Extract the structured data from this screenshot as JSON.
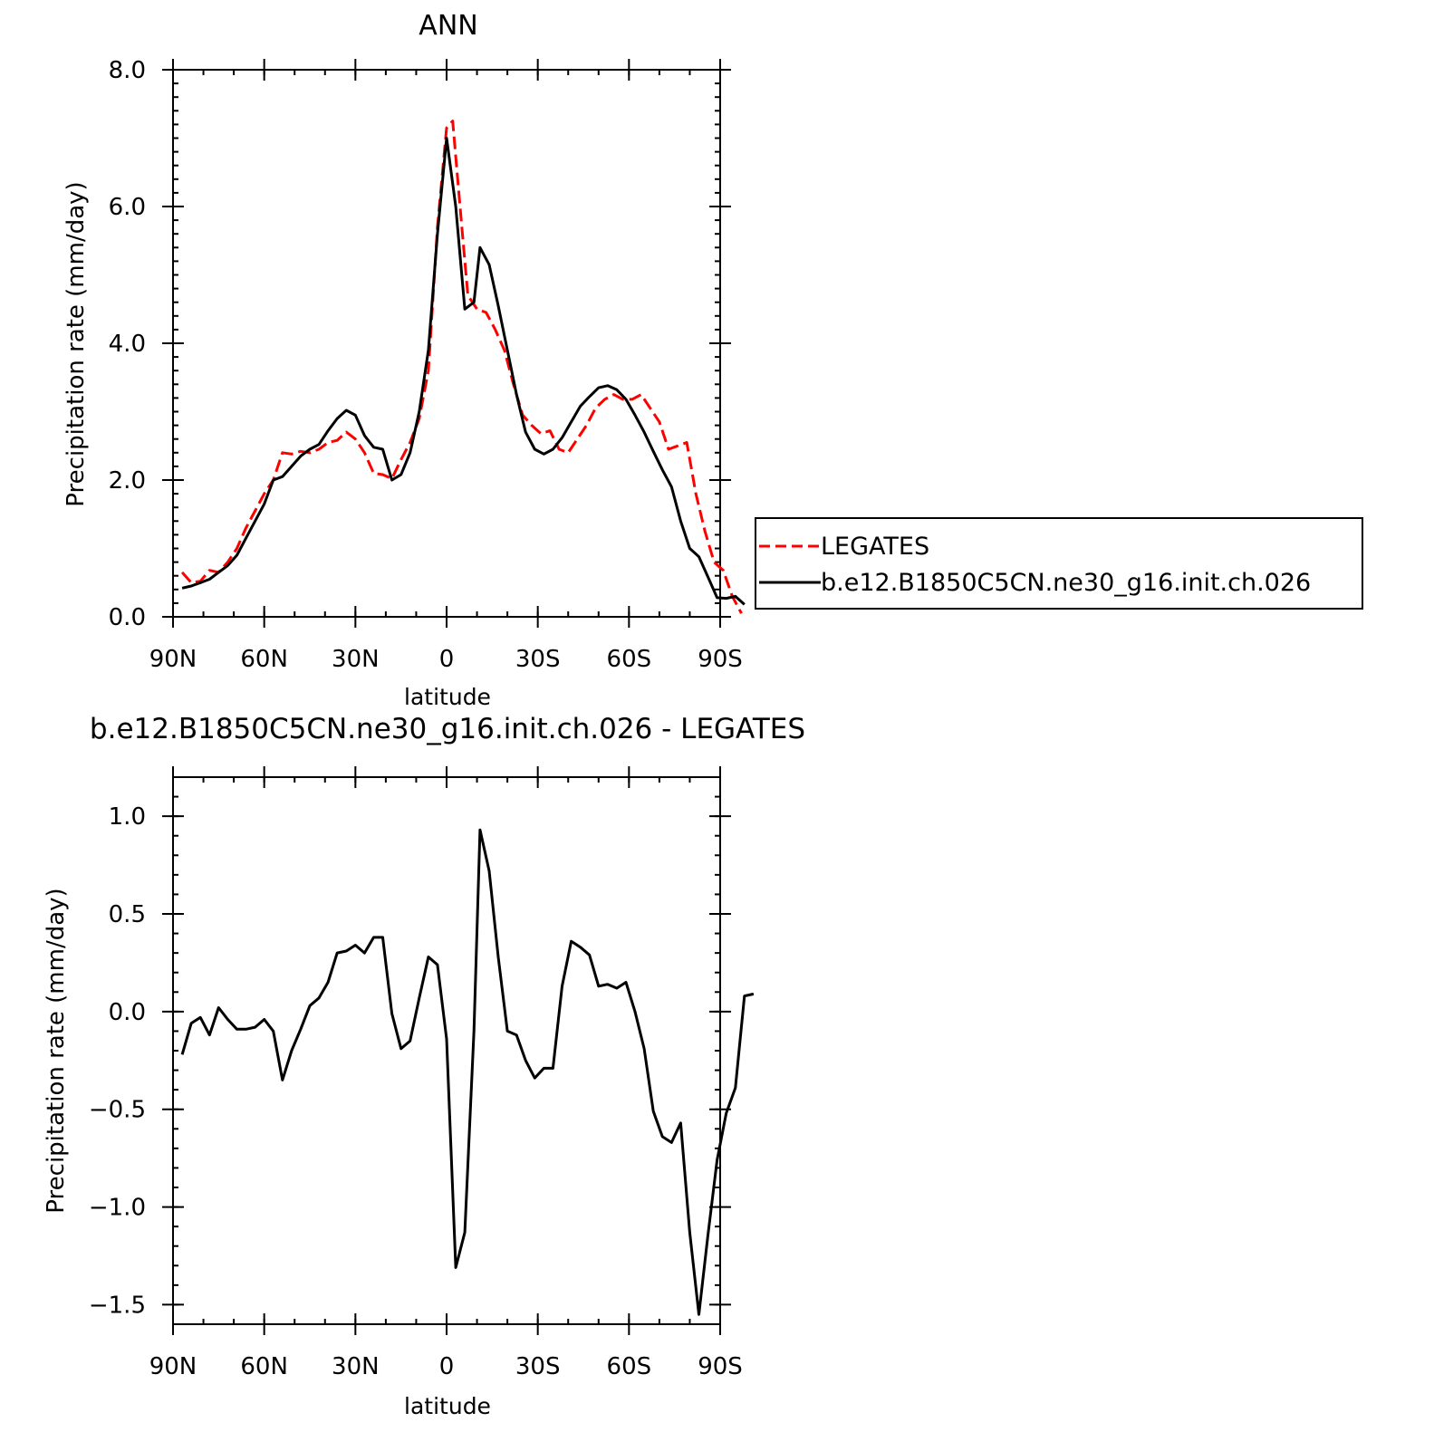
{
  "chart_data": [
    {
      "type": "line",
      "title": "ANN",
      "xlabel": "latitude",
      "ylabel": "Precipitation rate (mm/day)",
      "xlim": [
        90,
        -90
      ],
      "ylim": [
        0,
        8
      ],
      "x_ticks": [
        {
          "value": 90,
          "label": "90N"
        },
        {
          "value": 60,
          "label": "60N"
        },
        {
          "value": 30,
          "label": "30N"
        },
        {
          "value": 0,
          "label": "0"
        },
        {
          "value": -30,
          "label": "30S"
        },
        {
          "value": -60,
          "label": "60S"
        },
        {
          "value": -90,
          "label": "90S"
        }
      ],
      "y_ticks": [
        {
          "value": 0,
          "label": "0.0"
        },
        {
          "value": 2,
          "label": "2.0"
        },
        {
          "value": 4,
          "label": "4.0"
        },
        {
          "value": 6,
          "label": "6.0"
        },
        {
          "value": 8,
          "label": "8.0"
        }
      ],
      "grid": false,
      "legend": "right",
      "series": [
        {
          "name": "LEGATES",
          "color": "#ff0000",
          "dash": "dashed",
          "points": [
            [
              87,
              0.65
            ],
            [
              84,
              0.5
            ],
            [
              81,
              0.52
            ],
            [
              78,
              0.68
            ],
            [
              75,
              0.65
            ],
            [
              72,
              0.8
            ],
            [
              69,
              1.0
            ],
            [
              66,
              1.3
            ],
            [
              63,
              1.55
            ],
            [
              60,
              1.8
            ],
            [
              57,
              2.0
            ],
            [
              54,
              2.4
            ],
            [
              51,
              2.38
            ],
            [
              48,
              2.42
            ],
            [
              45,
              2.4
            ],
            [
              42,
              2.45
            ],
            [
              39,
              2.55
            ],
            [
              36,
              2.58
            ],
            [
              33,
              2.7
            ],
            [
              30,
              2.6
            ],
            [
              27,
              2.4
            ],
            [
              24,
              2.1
            ],
            [
              21,
              2.08
            ],
            [
              18,
              2.02
            ],
            [
              15,
              2.3
            ],
            [
              12,
              2.55
            ],
            [
              9,
              2.9
            ],
            [
              6,
              3.6
            ],
            [
              3,
              5.7
            ],
            [
              0,
              7.15
            ],
            [
              -2,
              7.25
            ],
            [
              -5,
              5.7
            ],
            [
              -7,
              4.7
            ],
            [
              -10,
              4.5
            ],
            [
              -13,
              4.45
            ],
            [
              -16,
              4.2
            ],
            [
              -19,
              3.9
            ],
            [
              -22,
              3.4
            ],
            [
              -25,
              2.95
            ],
            [
              -28,
              2.8
            ],
            [
              -31,
              2.68
            ],
            [
              -34,
              2.72
            ],
            [
              -37,
              2.45
            ],
            [
              -40,
              2.4
            ],
            [
              -43,
              2.6
            ],
            [
              -46,
              2.8
            ],
            [
              -49,
              3.05
            ],
            [
              -52,
              3.18
            ],
            [
              -55,
              3.25
            ],
            [
              -58,
              3.18
            ],
            [
              -61,
              3.18
            ],
            [
              -64,
              3.25
            ],
            [
              -67,
              3.05
            ],
            [
              -70,
              2.85
            ],
            [
              -73,
              2.45
            ],
            [
              -76,
              2.5
            ],
            [
              -79,
              2.55
            ],
            [
              -82,
              1.8
            ],
            [
              -85,
              1.25
            ],
            [
              -88,
              0.8
            ],
            [
              -91,
              0.68
            ],
            [
              -94,
              0.3
            ],
            [
              -97,
              0.05
            ]
          ]
        },
        {
          "name": "b.e12.B1850C5CN.ne30_g16.init.ch.026",
          "color": "#000000",
          "dash": "solid",
          "points": [
            [
              87,
              0.42
            ],
            [
              84,
              0.45
            ],
            [
              81,
              0.5
            ],
            [
              78,
              0.55
            ],
            [
              75,
              0.65
            ],
            [
              72,
              0.75
            ],
            [
              69,
              0.9
            ],
            [
              66,
              1.15
            ],
            [
              63,
              1.4
            ],
            [
              60,
              1.65
            ],
            [
              57,
              2.0
            ],
            [
              54,
              2.05
            ],
            [
              51,
              2.2
            ],
            [
              48,
              2.35
            ],
            [
              45,
              2.45
            ],
            [
              42,
              2.52
            ],
            [
              39,
              2.72
            ],
            [
              36,
              2.9
            ],
            [
              33,
              3.02
            ],
            [
              30,
              2.95
            ],
            [
              27,
              2.65
            ],
            [
              24,
              2.48
            ],
            [
              21,
              2.45
            ],
            [
              18,
              2.0
            ],
            [
              15,
              2.08
            ],
            [
              12,
              2.4
            ],
            [
              9,
              3.0
            ],
            [
              6,
              3.9
            ],
            [
              3,
              5.6
            ],
            [
              0,
              7.0
            ],
            [
              -3,
              6.0
            ],
            [
              -6,
              4.5
            ],
            [
              -9,
              4.6
            ],
            [
              -11,
              5.4
            ],
            [
              -14,
              5.15
            ],
            [
              -17,
              4.55
            ],
            [
              -20,
              3.9
            ],
            [
              -23,
              3.25
            ],
            [
              -26,
              2.7
            ],
            [
              -29,
              2.45
            ],
            [
              -32,
              2.38
            ],
            [
              -35,
              2.45
            ],
            [
              -38,
              2.62
            ],
            [
              -41,
              2.85
            ],
            [
              -44,
              3.08
            ],
            [
              -47,
              3.22
            ],
            [
              -50,
              3.35
            ],
            [
              -53,
              3.38
            ],
            [
              -56,
              3.32
            ],
            [
              -59,
              3.18
            ],
            [
              -62,
              2.95
            ],
            [
              -65,
              2.7
            ],
            [
              -68,
              2.42
            ],
            [
              -71,
              2.15
            ],
            [
              -74,
              1.9
            ],
            [
              -77,
              1.4
            ],
            [
              -80,
              1.0
            ],
            [
              -83,
              0.88
            ],
            [
              -86,
              0.58
            ],
            [
              -89,
              0.28
            ],
            [
              -92,
              0.27
            ],
            [
              -95,
              0.3
            ],
            [
              -98,
              0.18
            ]
          ]
        }
      ]
    },
    {
      "type": "line",
      "title": "b.e12.B1850C5CN.ne30_g16.init.ch.026 - LEGATES",
      "xlabel": "latitude",
      "ylabel": "Precipitation rate (mm/day)",
      "xlim": [
        90,
        -90
      ],
      "ylim": [
        -1.6,
        1.2
      ],
      "x_ticks": [
        {
          "value": 90,
          "label": "90N"
        },
        {
          "value": 60,
          "label": "60N"
        },
        {
          "value": 30,
          "label": "30N"
        },
        {
          "value": 0,
          "label": "0"
        },
        {
          "value": -30,
          "label": "30S"
        },
        {
          "value": -60,
          "label": "60S"
        },
        {
          "value": -90,
          "label": "90S"
        }
      ],
      "y_ticks": [
        {
          "value": 1.0,
          "label": "1.0"
        },
        {
          "value": 0.5,
          "label": "0.5"
        },
        {
          "value": 0.0,
          "label": "0.0"
        },
        {
          "value": -0.5,
          "label": "−0.5"
        },
        {
          "value": -1.0,
          "label": "−1.0"
        },
        {
          "value": -1.5,
          "label": "−1.5"
        }
      ],
      "grid": false,
      "legend": "none",
      "series": [
        {
          "color": "#000000",
          "dash": "solid",
          "points": [
            [
              87,
              -0.22
            ],
            [
              84,
              -0.06
            ],
            [
              81,
              -0.03
            ],
            [
              78,
              -0.12
            ],
            [
              75,
              0.02
            ],
            [
              72,
              -0.04
            ],
            [
              69,
              -0.09
            ],
            [
              66,
              -0.09
            ],
            [
              63,
              -0.08
            ],
            [
              60,
              -0.04
            ],
            [
              57,
              -0.1
            ],
            [
              54,
              -0.35
            ],
            [
              51,
              -0.2
            ],
            [
              48,
              -0.09
            ],
            [
              45,
              0.03
            ],
            [
              42,
              0.07
            ],
            [
              39,
              0.15
            ],
            [
              36,
              0.3
            ],
            [
              33,
              0.31
            ],
            [
              30,
              0.34
            ],
            [
              27,
              0.3
            ],
            [
              24,
              0.38
            ],
            [
              21,
              0.38
            ],
            [
              18,
              -0.01
            ],
            [
              15,
              -0.19
            ],
            [
              12,
              -0.15
            ],
            [
              9,
              0.07
            ],
            [
              6,
              0.28
            ],
            [
              3,
              0.24
            ],
            [
              0,
              -0.14
            ],
            [
              -3,
              -1.31
            ],
            [
              -6,
              -1.13
            ],
            [
              -9,
              -0.1
            ],
            [
              -11,
              0.93
            ],
            [
              -14,
              0.72
            ],
            [
              -17,
              0.28
            ],
            [
              -20,
              -0.1
            ],
            [
              -23,
              -0.12
            ],
            [
              -26,
              -0.25
            ],
            [
              -29,
              -0.34
            ],
            [
              -32,
              -0.29
            ],
            [
              -35,
              -0.29
            ],
            [
              -38,
              0.13
            ],
            [
              -41,
              0.36
            ],
            [
              -44,
              0.33
            ],
            [
              -47,
              0.29
            ],
            [
              -50,
              0.13
            ],
            [
              -53,
              0.14
            ],
            [
              -56,
              0.12
            ],
            [
              -59,
              0.15
            ],
            [
              -62,
              0.0
            ],
            [
              -65,
              -0.19
            ],
            [
              -68,
              -0.51
            ],
            [
              -71,
              -0.64
            ],
            [
              -74,
              -0.67
            ],
            [
              -77,
              -0.57
            ],
            [
              -80,
              -1.13
            ],
            [
              -83,
              -1.55
            ],
            [
              -86,
              -1.14
            ],
            [
              -89,
              -0.76
            ],
            [
              -92,
              -0.52
            ],
            [
              -95,
              -0.39
            ],
            [
              -98,
              0.08
            ],
            [
              -101,
              0.09
            ]
          ]
        }
      ]
    }
  ]
}
